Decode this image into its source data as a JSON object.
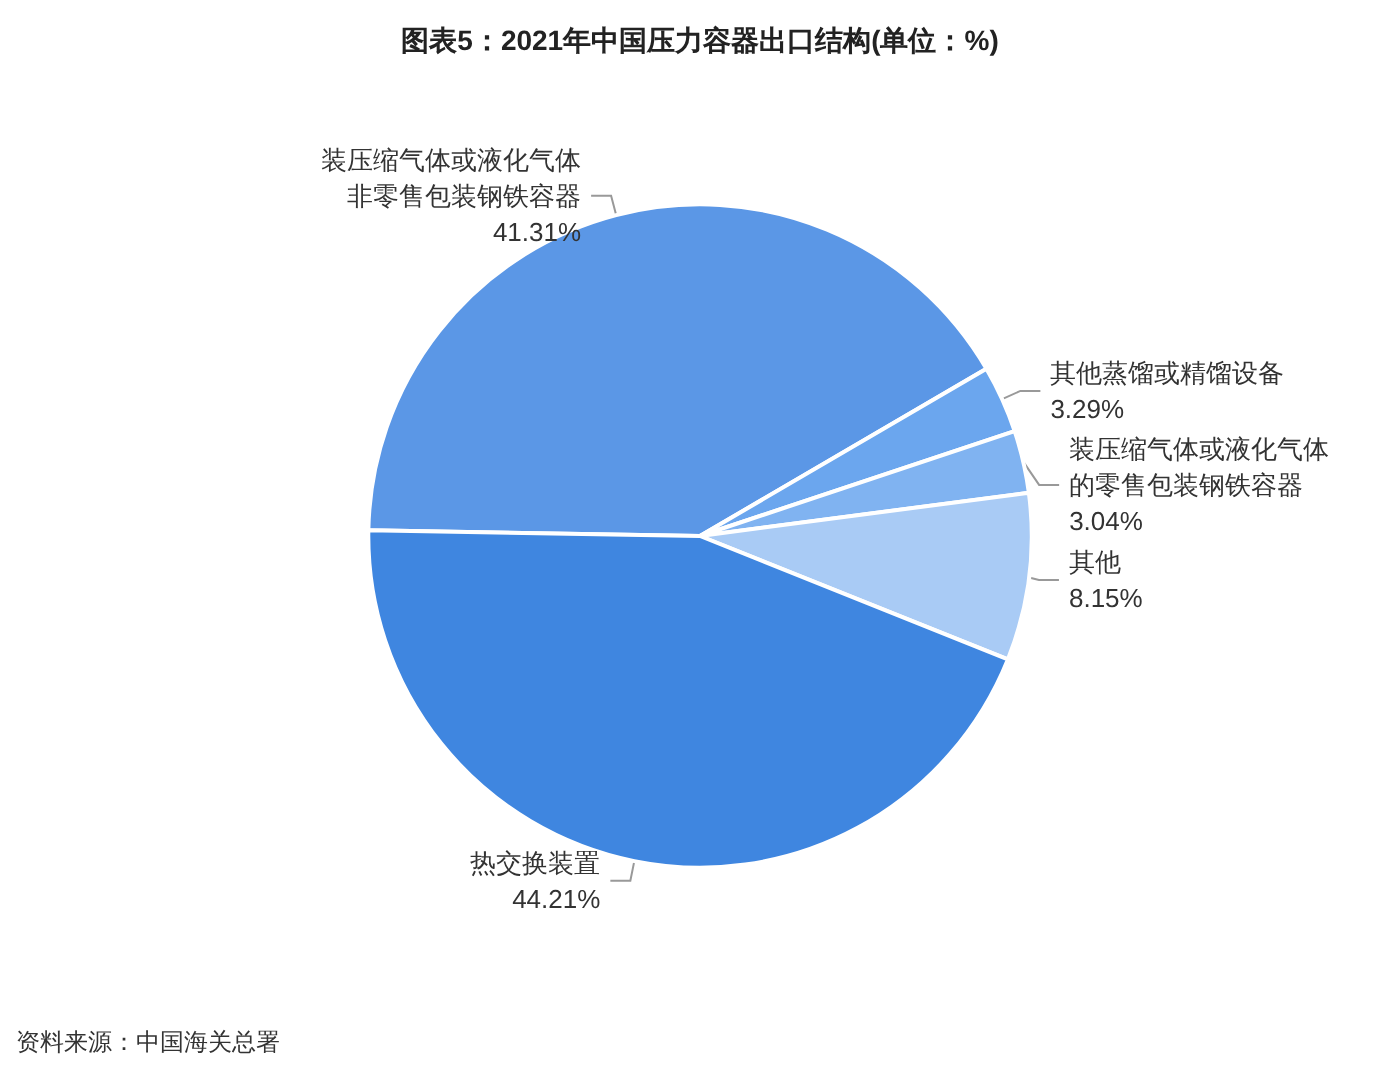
{
  "chart_data": {
    "type": "pie",
    "title": "图表5：2021年中国压力容器出口结构(单位：%)",
    "categories": [
      "装压缩气体或液化气体非零售包装钢铁容器",
      "其他蒸馏或精馏设备",
      "装压缩气体或液化气体的零售包装钢铁容器",
      "其他",
      "热交换装置"
    ],
    "values": [
      41.31,
      3.29,
      3.04,
      8.15,
      44.21
    ],
    "value_labels": [
      "41.31%",
      "3.29%",
      "3.04%",
      "8.15%",
      "44.21%"
    ],
    "colors": [
      "#5b97e6",
      "#6ba6ee",
      "#80b3f1",
      "#a9cbf5",
      "#3f86e0"
    ],
    "legend": false,
    "annotations": [
      "资料来源：中国海关总署"
    ]
  }
}
